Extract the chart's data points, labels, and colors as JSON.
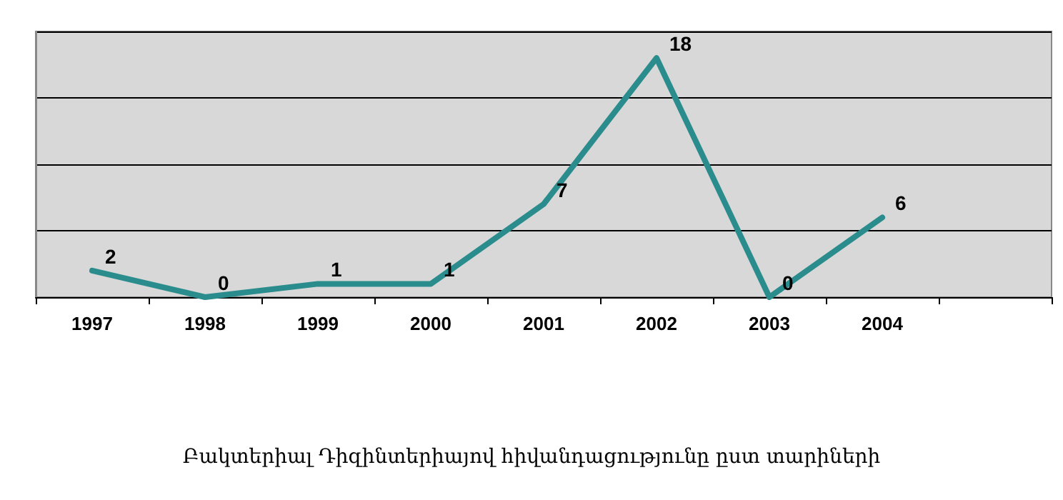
{
  "chart_data": {
    "type": "line",
    "title": "Բակտերիալ Դիզինտերիայով հիվանդացությունը ըստ տարիների",
    "categories": [
      "1997",
      "1998",
      "1999",
      "2000",
      "2001",
      "2002",
      "2003",
      "2004",
      null
    ],
    "series": [
      {
        "color": "#2a8c8c",
        "values": [
          2,
          0,
          1,
          1,
          7,
          18,
          0,
          6,
          null
        ]
      }
    ],
    "ylim": [
      0,
      20
    ],
    "yticks": [
      {
        "value": 0,
        "label": null
      },
      {
        "value": 5,
        "label": null
      },
      {
        "value": 10,
        "label": null
      },
      {
        "value": 15,
        "label": null
      },
      {
        "value": 20,
        "label": null
      }
    ],
    "grid": "y",
    "tick_labels": "x",
    "data_labels": true,
    "marker": "none",
    "line_style": "solid"
  }
}
